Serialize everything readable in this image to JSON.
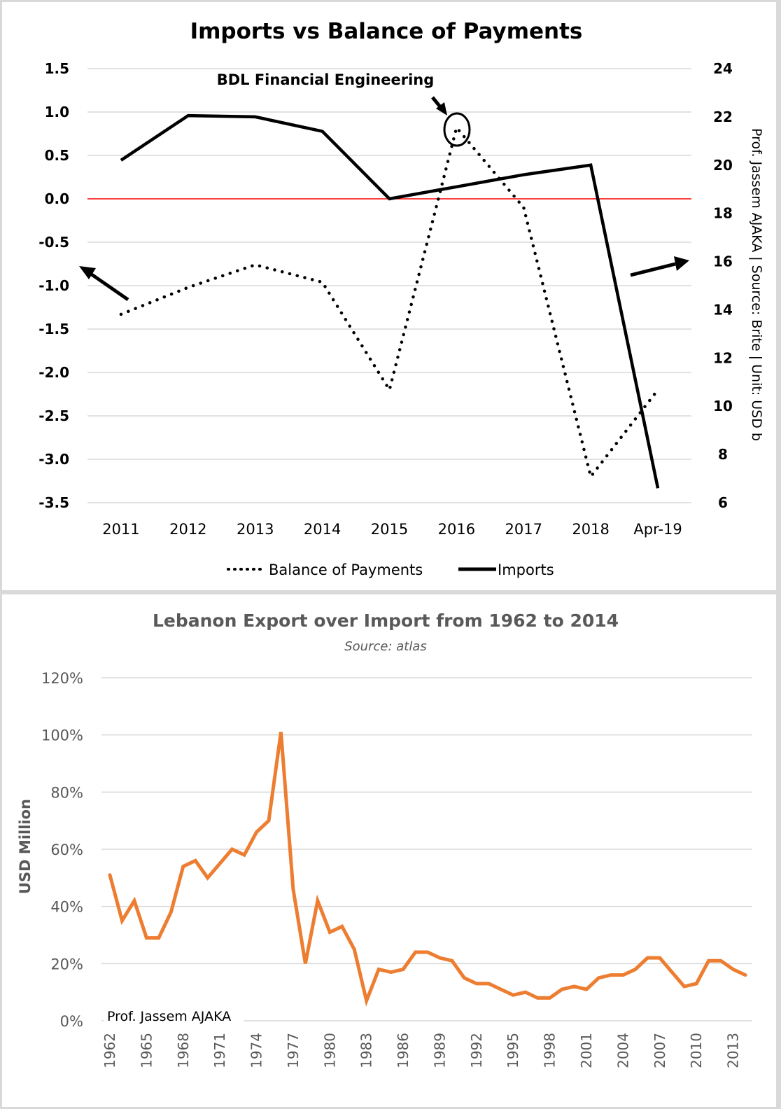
{
  "chart_data": [
    {
      "type": "line",
      "title": "Imports vs Balance of Payments",
      "categories": [
        "2011",
        "2012",
        "2013",
        "2014",
        "2015",
        "2016",
        "2017",
        "2018",
        "Apr-19"
      ],
      "series": [
        {
          "name": "Balance of Payments",
          "axis": "left",
          "style": "dotted",
          "values": [
            -1.33,
            -1.02,
            -0.76,
            -0.96,
            -2.2,
            0.82,
            -0.1,
            -3.2,
            -2.2
          ]
        },
        {
          "name": "Imports",
          "axis": "right",
          "style": "solid",
          "values": [
            20.2,
            22.05,
            22.0,
            21.4,
            18.6,
            19.1,
            19.6,
            20.0,
            6.6
          ]
        }
      ],
      "left_axis": {
        "ylim": [
          -3.5,
          1.5
        ],
        "ticks": [
          "1.5",
          "1.0",
          "0.5",
          "0.0",
          "-0.5",
          "-1.0",
          "-1.5",
          "-2.0",
          "-2.5",
          "-3.0",
          "-3.5"
        ]
      },
      "right_axis": {
        "ylim": [
          6,
          24
        ],
        "ticks": [
          "24",
          "22",
          "20",
          "18",
          "16",
          "14",
          "12",
          "10",
          "8",
          "6"
        ]
      },
      "zero_line_color": "#ff0000",
      "annotation": "BDL Financial Engineering",
      "side_label": "Prof. Jassem AJAKA | Source: Brite | Unit: USD b",
      "legend": [
        "Balance of Payments",
        "Imports"
      ],
      "legend_position": "bottom",
      "grid": true
    },
    {
      "type": "line",
      "title": "Lebanon Export over Import from 1962 to 2014",
      "subtitle": "Source: atlas",
      "ylabel": "USD Million",
      "ylim": [
        0,
        120
      ],
      "y_ticks": [
        "120%",
        "100%",
        "80%",
        "60%",
        "40%",
        "20%",
        "0%"
      ],
      "x_tick_labels": [
        "1962",
        "1965",
        "1968",
        "1971",
        "1974",
        "1977",
        "1980",
        "1983",
        "1986",
        "1989",
        "1992",
        "1995",
        "1998",
        "2001",
        "2004",
        "2007",
        "2010",
        "2013"
      ],
      "x": [
        1962,
        1963,
        1964,
        1965,
        1966,
        1967,
        1968,
        1969,
        1970,
        1971,
        1972,
        1973,
        1974,
        1975,
        1976,
        1977,
        1978,
        1979,
        1980,
        1981,
        1982,
        1983,
        1984,
        1985,
        1986,
        1987,
        1988,
        1989,
        1990,
        1991,
        1992,
        1993,
        1994,
        1995,
        1996,
        1997,
        1998,
        1999,
        2000,
        2001,
        2002,
        2003,
        2004,
        2005,
        2006,
        2007,
        2008,
        2009,
        2010,
        2011,
        2012,
        2013,
        2014
      ],
      "series": [
        {
          "name": "Export over Import (%)",
          "color": "#ed7d31",
          "values": [
            51,
            35,
            42,
            29,
            29,
            38,
            54,
            56,
            50,
            55,
            60,
            58,
            66,
            70,
            101,
            46,
            20,
            42,
            31,
            33,
            25,
            7,
            18,
            17,
            18,
            24,
            24,
            22,
            21,
            15,
            13,
            13,
            11,
            9,
            10,
            8,
            8,
            11,
            12,
            11,
            15,
            16,
            16,
            18,
            22,
            22,
            17,
            12,
            13,
            21,
            21,
            18,
            16
          ]
        }
      ],
      "credit": "Prof. Jassem AJAKA",
      "grid": true
    }
  ]
}
